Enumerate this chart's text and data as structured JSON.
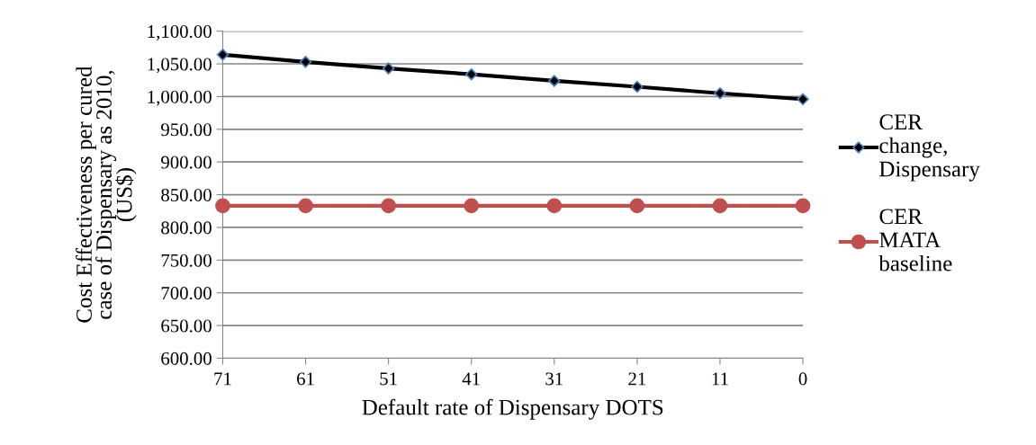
{
  "chart_data": {
    "type": "line",
    "xlabel": "Default rate of Dispensary DOTS",
    "ylabel": "Cost Effectiveness per cured\ncase of Dispensary as 2010,\n(US$)",
    "categories": [
      "71",
      "61",
      "51",
      "41",
      "31",
      "21",
      "11",
      "0"
    ],
    "series": [
      {
        "name": "CER\nchange,\nDispensary",
        "color": "#000000",
        "marker": "diamond",
        "values": [
          1064,
          1053,
          1043,
          1034,
          1024,
          1015,
          1005,
          996
        ]
      },
      {
        "name": "CER\nMATA\nbaseline",
        "color": "#c0504d",
        "marker": "circle",
        "values": [
          833,
          833,
          833,
          833,
          833,
          833,
          833,
          833
        ]
      }
    ],
    "ylim": [
      600,
      1100
    ],
    "yticks": [
      {
        "value": 600,
        "label": "600.00"
      },
      {
        "value": 650,
        "label": "650.00"
      },
      {
        "value": 700,
        "label": "700.00"
      },
      {
        "value": 750,
        "label": "750.00"
      },
      {
        "value": 800,
        "label": "800.00"
      },
      {
        "value": 850,
        "label": "850.00"
      },
      {
        "value": 900,
        "label": "900.00"
      },
      {
        "value": 950,
        "label": "950.00"
      },
      {
        "value": 1000,
        "label": "1,000.00"
      },
      {
        "value": 1050,
        "label": "1,050.00"
      },
      {
        "value": 1100,
        "label": "1,100.00"
      }
    ],
    "grid": "y",
    "legend": "right"
  }
}
